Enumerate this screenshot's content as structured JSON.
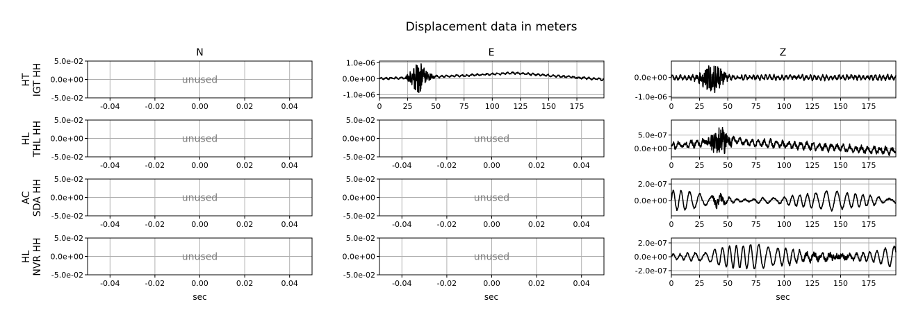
{
  "title": "Displacement data in meters",
  "columns": [
    "N",
    "E",
    "Z"
  ],
  "rows": [
    {
      "network": "HT",
      "station": "IGT HH"
    },
    {
      "network": "HL",
      "station": "THL HH"
    },
    {
      "network": "AC",
      "station": "SDA HH"
    },
    {
      "network": "HL",
      "station": "NVR HH"
    }
  ],
  "xlabel": "sec",
  "unused_text": "unused",
  "colors": {
    "trace": "#000000",
    "grid": "#b0b0b0",
    "unused_text": "#808080",
    "axes": "#000000"
  },
  "chart_data": [
    {
      "row": 0,
      "col": 0,
      "type": "line",
      "unused": true,
      "xlim": [
        -0.05,
        0.05
      ],
      "ylim": [
        -0.05,
        0.05
      ],
      "xticks": [
        "-0.04",
        "-0.02",
        "0.00",
        "0.02",
        "0.04"
      ],
      "xtick_values": [
        -0.04,
        -0.02,
        0,
        0.02,
        0.04
      ],
      "yticks": [
        "5.0e-02",
        "0.0e+00",
        "-5.0e-02"
      ],
      "ytick_values": [
        0.05,
        0,
        -0.05
      ]
    },
    {
      "row": 0,
      "col": 1,
      "type": "line",
      "unused": false,
      "xlim": [
        0,
        199
      ],
      "ylim": [
        -1.2e-06,
        1.1e-06
      ],
      "xticks": [
        "0",
        "25",
        "50",
        "75",
        "100",
        "125",
        "150",
        "175"
      ],
      "xtick_values": [
        0,
        25,
        50,
        75,
        100,
        125,
        150,
        175
      ],
      "yticks": [
        "1.0e-06",
        "0.0e+00",
        "-1.0e-06"
      ],
      "ytick_values": [
        1e-06,
        0,
        -1e-06
      ],
      "signal": {
        "baseline": [
          [
            0,
            0
          ],
          [
            60,
            1.5e-07
          ],
          [
            120,
            3.5e-07
          ],
          [
            199,
            -5e-08
          ]
        ],
        "noise": 6e-08,
        "burst_center": 35,
        "burst_amp": 9e-07,
        "burst_width": 8,
        "period": 5
      }
    },
    {
      "row": 0,
      "col": 2,
      "type": "line",
      "unused": false,
      "xlim": [
        0,
        199
      ],
      "ylim": [
        -1.05e-06,
        8.5e-07
      ],
      "xticks": [
        "0",
        "25",
        "50",
        "75",
        "100",
        "125",
        "150",
        "175"
      ],
      "xtick_values": [
        0,
        25,
        50,
        75,
        100,
        125,
        150,
        175
      ],
      "yticks": [
        "0.0e+00",
        "-1.0e-06"
      ],
      "ytick_values": [
        0,
        -1e-06
      ],
      "signal": {
        "baseline": [
          [
            0,
            0
          ],
          [
            199,
            0
          ]
        ],
        "noise": 1.1e-07,
        "burst_center": 36,
        "burst_amp": 7.5e-07,
        "burst_width": 10,
        "period": 4
      }
    },
    {
      "row": 1,
      "col": 0,
      "type": "line",
      "unused": true,
      "xlim": [
        -0.05,
        0.05
      ],
      "ylim": [
        -0.05,
        0.05
      ],
      "xticks": [
        "-0.04",
        "-0.02",
        "0.00",
        "0.02",
        "0.04"
      ],
      "xtick_values": [
        -0.04,
        -0.02,
        0,
        0.02,
        0.04
      ],
      "yticks": [
        "5.0e-02",
        "0.0e+00",
        "-5.0e-02"
      ],
      "ytick_values": [
        0.05,
        0,
        -0.05
      ]
    },
    {
      "row": 1,
      "col": 1,
      "type": "line",
      "unused": true,
      "xlim": [
        -0.05,
        0.05
      ],
      "ylim": [
        -0.05,
        0.05
      ],
      "xticks": [
        "-0.04",
        "-0.02",
        "0.00",
        "0.02",
        "0.04"
      ],
      "xtick_values": [
        -0.04,
        -0.02,
        0,
        0.02,
        0.04
      ],
      "yticks": [
        "5.0e-02",
        "0.0e+00",
        "-5.0e-02"
      ],
      "ytick_values": [
        0.05,
        0,
        -0.05
      ]
    },
    {
      "row": 1,
      "col": 2,
      "type": "line",
      "unused": false,
      "xlim": [
        0,
        199
      ],
      "ylim": [
        -3e-07,
        1.05e-06
      ],
      "xticks": [
        "0",
        "25",
        "50",
        "75",
        "100",
        "125",
        "150",
        "175"
      ],
      "xtick_values": [
        0,
        25,
        50,
        75,
        100,
        125,
        150,
        175
      ],
      "yticks": [
        "5.0e-07",
        "0.0e+00"
      ],
      "ytick_values": [
        5e-07,
        0
      ],
      "signal": {
        "baseline": [
          [
            0,
            1e-07
          ],
          [
            45,
            3e-07
          ],
          [
            100,
            1.5e-07
          ],
          [
            199,
            -1e-07
          ]
        ],
        "noise": 1.2e-07,
        "burst_center": 42,
        "burst_amp": 5.5e-07,
        "burst_width": 8,
        "period": 6
      }
    },
    {
      "row": 2,
      "col": 0,
      "type": "line",
      "unused": true,
      "xlim": [
        -0.05,
        0.05
      ],
      "ylim": [
        -0.05,
        0.05
      ],
      "xticks": [
        "-0.04",
        "-0.02",
        "0.00",
        "0.02",
        "0.04"
      ],
      "xtick_values": [
        -0.04,
        -0.02,
        0,
        0.02,
        0.04
      ],
      "yticks": [
        "5.0e-02",
        "0.0e+00",
        "-5.0e-02"
      ],
      "ytick_values": [
        0.05,
        0,
        -0.05
      ]
    },
    {
      "row": 2,
      "col": 1,
      "type": "line",
      "unused": true,
      "xlim": [
        -0.05,
        0.05
      ],
      "ylim": [
        -0.05,
        0.05
      ],
      "xticks": [
        "-0.04",
        "-0.02",
        "0.00",
        "0.02",
        "0.04"
      ],
      "xtick_values": [
        -0.04,
        -0.02,
        0,
        0.02,
        0.04
      ],
      "yticks": [
        "5.0e-02",
        "0.0e+00",
        "-5.0e-02"
      ],
      "ytick_values": [
        0.05,
        0,
        -0.05
      ]
    },
    {
      "row": 2,
      "col": 2,
      "type": "line",
      "unused": false,
      "xlim": [
        0,
        199
      ],
      "ylim": [
        -1.85e-07,
        2.6e-07
      ],
      "xticks": [
        "0",
        "25",
        "50",
        "75",
        "100",
        "125",
        "150",
        "175"
      ],
      "xtick_values": [
        0,
        25,
        50,
        75,
        100,
        125,
        150,
        175
      ],
      "yticks": [
        "2.0e-07",
        "0.0e+00"
      ],
      "ytick_values": [
        2e-07,
        0
      ],
      "signal": {
        "baseline": [
          [
            0,
            0
          ],
          [
            199,
            0
          ]
        ],
        "noise": 1.5e-08,
        "burst_center": 42,
        "burst_amp": 6e-08,
        "burst_width": 5,
        "period": 8,
        "wave_amp": 1.1e-07
      }
    },
    {
      "row": 3,
      "col": 0,
      "type": "line",
      "unused": true,
      "xlim": [
        -0.05,
        0.05
      ],
      "ylim": [
        -0.05,
        0.05
      ],
      "xticks": [
        "-0.04",
        "-0.02",
        "0.00",
        "0.02",
        "0.04"
      ],
      "xtick_values": [
        -0.04,
        -0.02,
        0,
        0.02,
        0.04
      ],
      "yticks": [
        "5.0e-02",
        "0.0e+00",
        "-5.0e-02"
      ],
      "ytick_values": [
        0.05,
        0,
        -0.05
      ]
    },
    {
      "row": 3,
      "col": 1,
      "type": "line",
      "unused": true,
      "xlim": [
        -0.05,
        0.05
      ],
      "ylim": [
        -0.05,
        0.05
      ],
      "xticks": [
        "-0.04",
        "-0.02",
        "0.00",
        "0.02",
        "0.04"
      ],
      "xtick_values": [
        -0.04,
        -0.02,
        0,
        0.02,
        0.04
      ],
      "yticks": [
        "5.0e-02",
        "0.0e+00",
        "-5.0e-02"
      ],
      "ytick_values": [
        0.05,
        0,
        -0.05
      ]
    },
    {
      "row": 3,
      "col": 2,
      "type": "line",
      "unused": false,
      "xlim": [
        0,
        199
      ],
      "ylim": [
        -2.6e-07,
        2.7e-07
      ],
      "xticks": [
        "0",
        "25",
        "50",
        "75",
        "100",
        "125",
        "150",
        "175"
      ],
      "xtick_values": [
        0,
        25,
        50,
        75,
        100,
        125,
        150,
        175
      ],
      "yticks": [
        "2.0e-07",
        "0.0e+00",
        "-2.0e-07"
      ],
      "ytick_values": [
        2e-07,
        0,
        -2e-07
      ],
      "signal": {
        "baseline": [
          [
            0,
            0
          ],
          [
            199,
            0
          ]
        ],
        "noise": 2e-08,
        "burst_center": 140,
        "burst_amp": 4e-08,
        "burst_width": 30,
        "period": 7,
        "wave_amp": 1.6e-07
      }
    }
  ]
}
